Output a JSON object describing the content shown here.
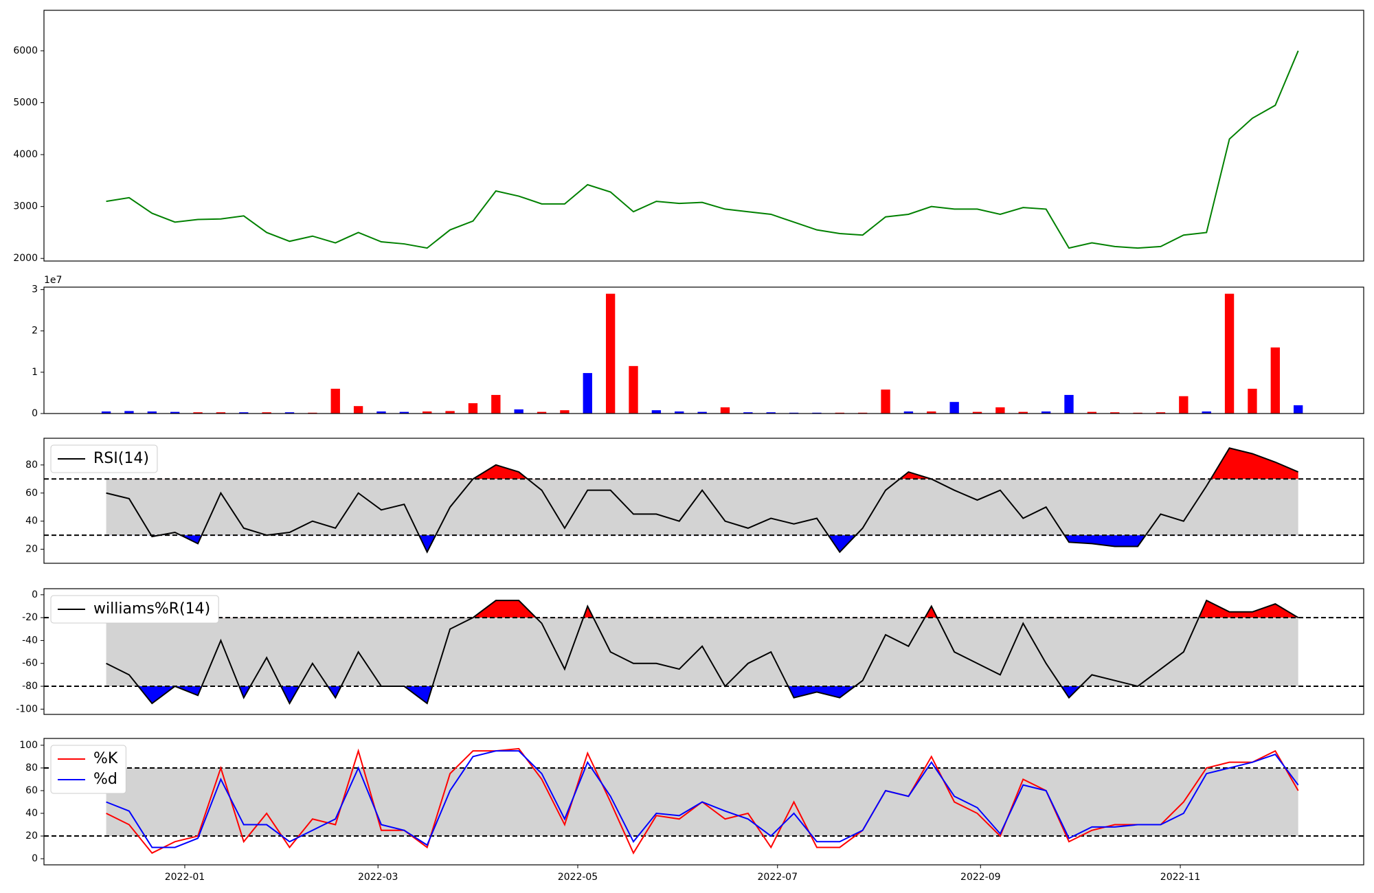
{
  "chart_data": [
    {
      "type": "line",
      "x": [
        18969,
        18976,
        18983,
        18990,
        18997,
        19004,
        19011,
        19018,
        19025,
        19032,
        19039,
        19046,
        19053,
        19060,
        19067,
        19074,
        19081,
        19088,
        19095,
        19102,
        19109,
        19116,
        19123,
        19130,
        19137,
        19144,
        19151,
        19158,
        19165,
        19172,
        19179,
        19186,
        19193,
        19200,
        19207,
        19214,
        19221,
        19228,
        19235,
        19242,
        19249,
        19256,
        19263,
        19270,
        19277,
        19284,
        19291,
        19298,
        19305,
        19312,
        19319,
        19326,
        19333
      ],
      "xlim": [
        18950,
        19353
      ],
      "ylim": [
        1950,
        6780
      ],
      "yticks": [
        2000,
        3000,
        4000,
        5000,
        6000
      ],
      "series": [
        {
          "color": "#008000",
          "values": [
            3100,
            3170,
            2870,
            2700,
            2750,
            2760,
            2820,
            2500,
            2330,
            2430,
            2300,
            2500,
            2320,
            2280,
            2200,
            2550,
            2720,
            3300,
            3200,
            3050,
            3050,
            3420,
            3280,
            2900,
            3100,
            3060,
            3080,
            2950,
            2900,
            2850,
            2700,
            2550,
            2480,
            2450,
            2800,
            2850,
            3000,
            2950,
            2950,
            2850,
            2980,
            2950,
            2200,
            2300,
            2230,
            2200,
            2230,
            2450,
            2500,
            4300,
            4700,
            4950,
            6000
          ]
        }
      ]
    },
    {
      "type": "bar",
      "x": [
        18969,
        18976,
        18983,
        18990,
        18997,
        19004,
        19011,
        19018,
        19025,
        19032,
        19039,
        19046,
        19053,
        19060,
        19067,
        19074,
        19081,
        19088,
        19095,
        19102,
        19109,
        19116,
        19123,
        19130,
        19137,
        19144,
        19151,
        19158,
        19165,
        19172,
        19179,
        19186,
        19193,
        19200,
        19207,
        19214,
        19221,
        19228,
        19235,
        19242,
        19249,
        19256,
        19263,
        19270,
        19277,
        19284,
        19291,
        19298,
        19305,
        19312,
        19319,
        19326,
        19333
      ],
      "xlim": [
        18950,
        19353
      ],
      "ylim": [
        0,
        30600000
      ],
      "yticks": [
        0,
        {
          "value": 10000000,
          "label": "1"
        },
        {
          "value": 20000000,
          "label": "2"
        },
        {
          "value": 30000000,
          "label": "3"
        }
      ],
      "offset_label": "1e7",
      "values": [
        500000,
        600000,
        500000,
        400000,
        300000,
        300000,
        300000,
        300000,
        300000,
        200000,
        6000000,
        1800000,
        500000,
        400000,
        500000,
        600000,
        2500000,
        4500000,
        1000000,
        400000,
        800000,
        9800000,
        29000000,
        11500000,
        800000,
        500000,
        400000,
        1500000,
        300000,
        300000,
        200000,
        200000,
        200000,
        200000,
        5800000,
        500000,
        500000,
        2800000,
        400000,
        1500000,
        400000,
        500000,
        4500000,
        400000,
        300000,
        200000,
        300000,
        4200000,
        500000,
        29000000,
        6000000,
        16000000,
        2000000
      ],
      "colors": [
        "#0000ff",
        "#0000ff",
        "#0000ff",
        "#0000ff",
        "#ff0000",
        "#ff0000",
        "#0000ff",
        "#ff0000",
        "#0000ff",
        "#ff0000",
        "#ff0000",
        "#ff0000",
        "#0000ff",
        "#0000ff",
        "#ff0000",
        "#ff0000",
        "#ff0000",
        "#ff0000",
        "#0000ff",
        "#ff0000",
        "#ff0000",
        "#0000ff",
        "#ff0000",
        "#ff0000",
        "#0000ff",
        "#0000ff",
        "#0000ff",
        "#ff0000",
        "#0000ff",
        "#0000ff",
        "#0000ff",
        "#0000ff",
        "#ff0000",
        "#ff0000",
        "#ff0000",
        "#0000ff",
        "#ff0000",
        "#0000ff",
        "#ff0000",
        "#ff0000",
        "#ff0000",
        "#0000ff",
        "#0000ff",
        "#ff0000",
        "#ff0000",
        "#ff0000",
        "#ff0000",
        "#ff0000",
        "#0000ff",
        "#ff0000",
        "#ff0000",
        "#ff0000",
        "#0000ff"
      ]
    },
    {
      "type": "oscillator",
      "x": [
        18969,
        18976,
        18983,
        18990,
        18997,
        19004,
        19011,
        19018,
        19025,
        19032,
        19039,
        19046,
        19053,
        19060,
        19067,
        19074,
        19081,
        19088,
        19095,
        19102,
        19109,
        19116,
        19123,
        19130,
        19137,
        19144,
        19151,
        19158,
        19165,
        19172,
        19179,
        19186,
        19193,
        19200,
        19207,
        19214,
        19221,
        19228,
        19235,
        19242,
        19249,
        19256,
        19263,
        19270,
        19277,
        19284,
        19291,
        19298,
        19305,
        19312,
        19319,
        19326,
        19333
      ],
      "xlim": [
        18950,
        19353
      ],
      "ylim": [
        10,
        99
      ],
      "yticks": [
        20,
        40,
        60,
        80
      ],
      "thresholds": [
        70,
        30
      ],
      "band_color": "#d3d3d3",
      "above_color": "#ff0000",
      "below_color": "#0000ff",
      "legend": "upper left",
      "series": [
        {
          "name": "RSI(14)",
          "color": "#000000",
          "values": [
            60,
            56,
            29,
            32,
            24,
            60,
            35,
            30,
            32,
            40,
            35,
            60,
            48,
            52,
            18,
            50,
            70,
            80,
            75,
            62,
            35,
            62,
            62,
            45,
            45,
            40,
            62,
            40,
            35,
            42,
            38,
            42,
            18,
            35,
            62,
            75,
            70,
            62,
            55,
            62,
            42,
            50,
            25,
            24,
            22,
            22,
            45,
            40,
            65,
            92,
            88,
            82,
            75
          ]
        }
      ]
    },
    {
      "type": "oscillator",
      "x": [
        18969,
        18976,
        18983,
        18990,
        18997,
        19004,
        19011,
        19018,
        19025,
        19032,
        19039,
        19046,
        19053,
        19060,
        19067,
        19074,
        19081,
        19088,
        19095,
        19102,
        19109,
        19116,
        19123,
        19130,
        19137,
        19144,
        19151,
        19158,
        19165,
        19172,
        19179,
        19186,
        19193,
        19200,
        19207,
        19214,
        19221,
        19228,
        19235,
        19242,
        19249,
        19256,
        19263,
        19270,
        19277,
        19284,
        19291,
        19298,
        19305,
        19312,
        19319,
        19326,
        19333
      ],
      "xlim": [
        18950,
        19353
      ],
      "ylim": [
        -104.6,
        5.3
      ],
      "yticks": [
        -100,
        -80,
        -60,
        -40,
        -20,
        0
      ],
      "thresholds": [
        -20,
        -80
      ],
      "band_color": "#d3d3d3",
      "above_color": "#ff0000",
      "below_color": "#0000ff",
      "legend": "upper left",
      "series": [
        {
          "name": "williams%R(14)",
          "color": "#000000",
          "values": [
            -60,
            -70,
            -95,
            -80,
            -88,
            -40,
            -90,
            -55,
            -95,
            -60,
            -90,
            -50,
            -80,
            -80,
            -95,
            -30,
            -20,
            -5,
            -5,
            -25,
            -65,
            -10,
            -50,
            -60,
            -60,
            -65,
            -45,
            -80,
            -60,
            -50,
            -90,
            -85,
            -90,
            -75,
            -35,
            -45,
            -10,
            -50,
            -60,
            -70,
            -25,
            -60,
            -90,
            -70,
            -75,
            -80,
            -65,
            -50,
            -5,
            -15,
            -15,
            -8,
            -20
          ]
        }
      ]
    },
    {
      "type": "oscillator",
      "x": [
        18969,
        18976,
        18983,
        18990,
        18997,
        19004,
        19011,
        19018,
        19025,
        19032,
        19039,
        19046,
        19053,
        19060,
        19067,
        19074,
        19081,
        19088,
        19095,
        19102,
        19109,
        19116,
        19123,
        19130,
        19137,
        19144,
        19151,
        19158,
        19165,
        19172,
        19179,
        19186,
        19193,
        19200,
        19207,
        19214,
        19221,
        19228,
        19235,
        19242,
        19249,
        19256,
        19263,
        19270,
        19277,
        19284,
        19291,
        19298,
        19305,
        19312,
        19319,
        19326,
        19333
      ],
      "xlim": [
        18950,
        19353
      ],
      "ylim": [
        -5.4,
        106
      ],
      "yticks": [
        0,
        20,
        40,
        60,
        80,
        100
      ],
      "xticks": [
        {
          "value": 18993,
          "label": "2022-01"
        },
        {
          "value": 19052,
          "label": "2022-03"
        },
        {
          "value": 19113,
          "label": "2022-05"
        },
        {
          "value": 19174,
          "label": "2022-07"
        },
        {
          "value": 19236,
          "label": "2022-09"
        },
        {
          "value": 19297,
          "label": "2022-11"
        }
      ],
      "thresholds": [
        80,
        20
      ],
      "band_color": "#d3d3d3",
      "legend": "upper left",
      "series": [
        {
          "name": "%K",
          "color": "#ff0000",
          "values": [
            40,
            30,
            5,
            15,
            20,
            80,
            15,
            40,
            10,
            35,
            30,
            95,
            25,
            25,
            10,
            75,
            95,
            95,
            97,
            70,
            30,
            93,
            50,
            5,
            38,
            35,
            50,
            35,
            40,
            10,
            50,
            10,
            10,
            25,
            60,
            55,
            90,
            50,
            40,
            20,
            70,
            60,
            15,
            25,
            30,
            30,
            30,
            50,
            80,
            85,
            85,
            95,
            60
          ]
        },
        {
          "name": "%d",
          "color": "#0000ff",
          "values": [
            50,
            42,
            10,
            10,
            18,
            70,
            30,
            30,
            15,
            25,
            35,
            80,
            30,
            25,
            12,
            60,
            90,
            95,
            95,
            75,
            35,
            85,
            55,
            15,
            40,
            38,
            50,
            42,
            35,
            20,
            40,
            15,
            15,
            25,
            60,
            55,
            85,
            55,
            45,
            22,
            65,
            60,
            18,
            28,
            28,
            30,
            30,
            40,
            75,
            80,
            85,
            92,
            65
          ]
        }
      ]
    }
  ]
}
